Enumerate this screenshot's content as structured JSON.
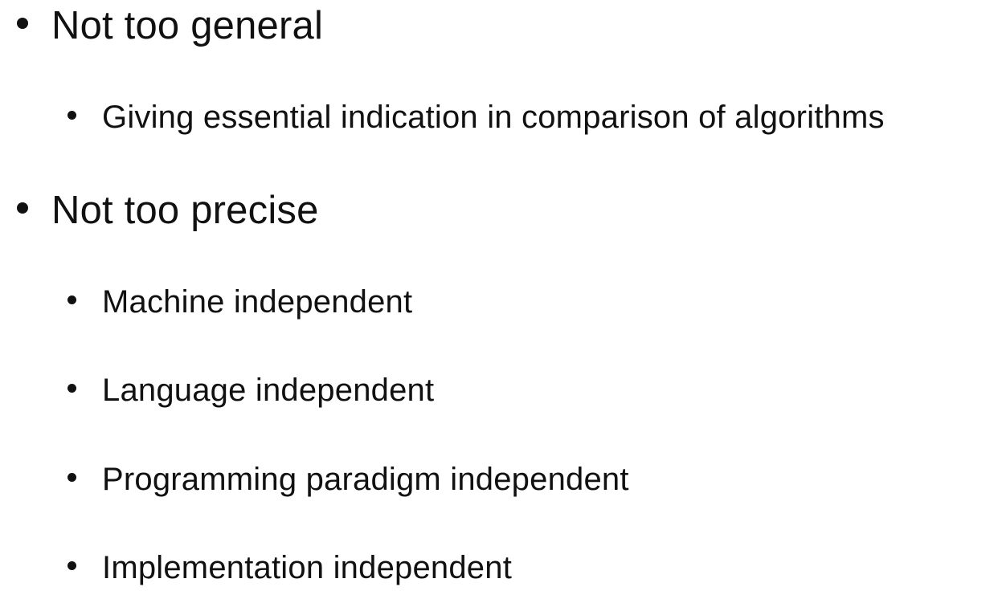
{
  "outline": {
    "items": [
      {
        "level": 1,
        "text": "Not too general"
      },
      {
        "level": 2,
        "text": "Giving essential indication in comparison of algorithms"
      },
      {
        "level": 1,
        "text": "Not too precise"
      },
      {
        "level": 2,
        "text": "Machine independent"
      },
      {
        "level": 2,
        "text": "Language independent"
      },
      {
        "level": 2,
        "text": "Programming paradigm independent"
      },
      {
        "level": 2,
        "text": "Implementation independent"
      }
    ]
  },
  "icons": {
    "bullet": "bullet-dot-icon"
  }
}
